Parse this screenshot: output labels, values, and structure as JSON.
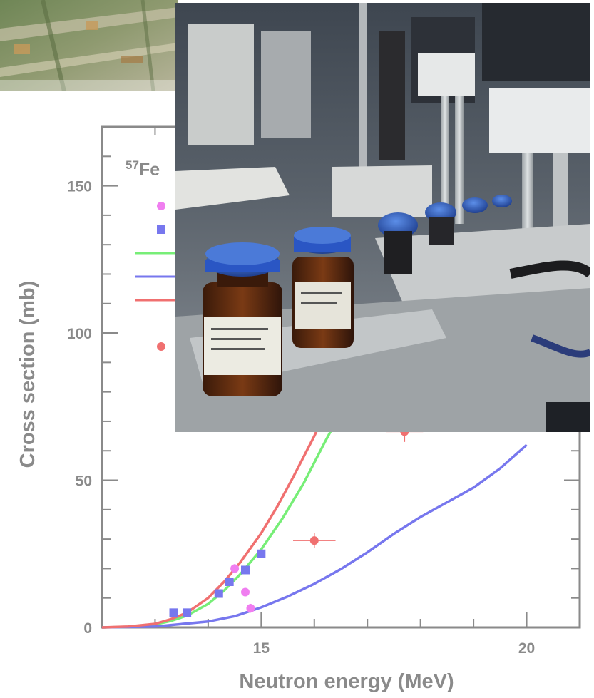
{
  "chart_data": {
    "type": "scatter",
    "title": "57Fe",
    "title_sup": "57",
    "title_base": "Fe",
    "xlabel": "Neutron energy (MeV)",
    "ylabel": "Cross section (mb)",
    "xlim": [
      12,
      21
    ],
    "ylim": [
      0,
      170
    ],
    "xticks": [
      15,
      20
    ],
    "yticks": [
      0,
      50,
      100,
      150
    ],
    "grid": false,
    "legend_position": "top-left",
    "series": [
      {
        "kind": "points",
        "marker": "circle",
        "color": "#f07ef0",
        "x": [
          14.5,
          14.7,
          14.8
        ],
        "y": [
          20,
          12,
          6.5
        ],
        "yerr": [
          1.5,
          1.2,
          1.5
        ]
      },
      {
        "kind": "points",
        "marker": "square",
        "color": "#7777ee",
        "x": [
          13.35,
          13.6,
          14.2,
          14.4,
          14.7,
          15.0
        ],
        "y": [
          5,
          5,
          11.5,
          15.5,
          19.5,
          25
        ],
        "yerr": [
          0.5,
          0.5,
          0.8,
          0.8,
          0.8,
          1.0
        ]
      },
      {
        "kind": "points",
        "marker": "circle",
        "color": "#f07070",
        "x": [
          16.0,
          17.7
        ],
        "y": [
          29.5,
          66.5
        ],
        "xerr": [
          0.4,
          0.35
        ],
        "yerr": [
          2.5,
          3.5
        ]
      },
      {
        "kind": "line",
        "color": "#77ee77",
        "x": [
          12.0,
          12.5,
          13.0,
          13.3,
          13.6,
          14.0,
          14.3,
          14.6,
          15.0,
          15.4,
          15.8,
          16.2,
          16.5
        ],
        "y": [
          0,
          0.2,
          1.0,
          2.2,
          4.0,
          8.0,
          12.5,
          18.0,
          26.5,
          37.0,
          49.0,
          63.0,
          73.0
        ]
      },
      {
        "kind": "line",
        "color": "#7777ee",
        "x": [
          12.0,
          13.0,
          14.0,
          14.5,
          15.0,
          15.5,
          16.0,
          16.5,
          17.0,
          17.5,
          18.0,
          18.5,
          19.0,
          19.5,
          20.0
        ],
        "y": [
          0,
          0.3,
          2.0,
          3.8,
          6.8,
          10.5,
          14.8,
          19.8,
          25.5,
          31.8,
          37.5,
          42.5,
          47.5,
          54.0,
          62.0
        ]
      },
      {
        "kind": "line",
        "color": "#f07070",
        "x": [
          12.0,
          12.5,
          13.0,
          13.3,
          13.6,
          14.0,
          14.3,
          14.6,
          15.0,
          15.3,
          15.6,
          16.0,
          16.2
        ],
        "y": [
          0,
          0.3,
          1.2,
          2.8,
          5.0,
          10.0,
          15.5,
          22.0,
          32.0,
          41.0,
          51.0,
          65.0,
          73.0
        ]
      }
    ],
    "legend_entries": [
      {
        "kind": "marker",
        "marker": "circle",
        "color": "#f07ef0"
      },
      {
        "kind": "marker",
        "marker": "square",
        "color": "#7777ee"
      },
      {
        "kind": "line",
        "color": "#77ee77"
      },
      {
        "kind": "line",
        "color": "#7777ee"
      },
      {
        "kind": "line",
        "color": "#f07070"
      },
      {
        "kind": "marker",
        "marker": "circle",
        "color": "#f07070"
      }
    ]
  },
  "images": {
    "background_photo": "aerial-landscape-photo",
    "main_photo": "lab-sample-changer-with-amber-bottles-photo"
  }
}
